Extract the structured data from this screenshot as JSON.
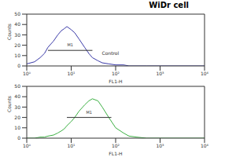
{
  "chart_data": [
    {
      "type": "line",
      "title": "WiDr cell",
      "x_label": "FL1-H",
      "y_label": "Counts",
      "log": "x",
      "grid": false,
      "xlim": [
        1,
        10000
      ],
      "xticks": [
        {
          "value": 1,
          "label": "10⁰"
        },
        {
          "value": 10,
          "label": "10¹"
        },
        {
          "value": 100,
          "label": "10²"
        },
        {
          "value": 1000,
          "label": "10³"
        },
        {
          "value": 10000,
          "label": "10⁴"
        }
      ],
      "ylim": [
        0,
        50
      ],
      "yticks": [
        0,
        10,
        20,
        30,
        40,
        50
      ],
      "series": [
        {
          "name": "Control",
          "color": "#3a3aa8",
          "x": [
            1,
            1.5,
            2,
            2.5,
            3,
            4,
            5,
            6,
            7,
            8,
            10,
            12,
            15,
            20,
            25,
            30,
            40,
            50,
            70,
            100,
            150,
            200,
            300,
            500,
            1000,
            10000
          ],
          "values": [
            2,
            4,
            8,
            12,
            18,
            24,
            30,
            34,
            36,
            38,
            35,
            32,
            26,
            18,
            12,
            8,
            5,
            3,
            2,
            1,
            1,
            0,
            0,
            0,
            0,
            0
          ]
        }
      ],
      "annotations": [
        {
          "text": "M1",
          "x": [
            3,
            30
          ],
          "y": 15
        },
        {
          "text": "Control",
          "x": [
            40
          ],
          "y": 12
        }
      ]
    },
    {
      "type": "line",
      "x_label": "FL1-H",
      "y_label": "Counts",
      "log": "x",
      "grid": false,
      "xlim": [
        1,
        10000
      ],
      "xticks": [
        {
          "value": 1,
          "label": "10⁰"
        },
        {
          "value": 10,
          "label": "10¹"
        },
        {
          "value": 100,
          "label": "10²"
        },
        {
          "value": 1000,
          "label": "10³"
        },
        {
          "value": 10000,
          "label": "10⁴"
        }
      ],
      "ylim": [
        0,
        50
      ],
      "yticks": [
        0,
        10,
        20,
        30,
        40,
        50
      ],
      "series": [
        {
          "color": "#3cb043",
          "x": [
            1,
            1.5,
            2,
            2.5,
            3,
            4,
            5,
            6,
            7,
            8,
            10,
            12,
            15,
            20,
            25,
            30,
            40,
            50,
            70,
            100,
            150,
            200,
            300,
            500,
            1000,
            10000
          ],
          "values": [
            0,
            0,
            1,
            1,
            2,
            3,
            5,
            7,
            9,
            12,
            16,
            20,
            26,
            32,
            36,
            38,
            36,
            30,
            20,
            10,
            5,
            2,
            1,
            0,
            0,
            0
          ]
        }
      ],
      "annotations": [
        {
          "text": "M1",
          "x": [
            8,
            80
          ],
          "y": 20
        }
      ]
    }
  ]
}
